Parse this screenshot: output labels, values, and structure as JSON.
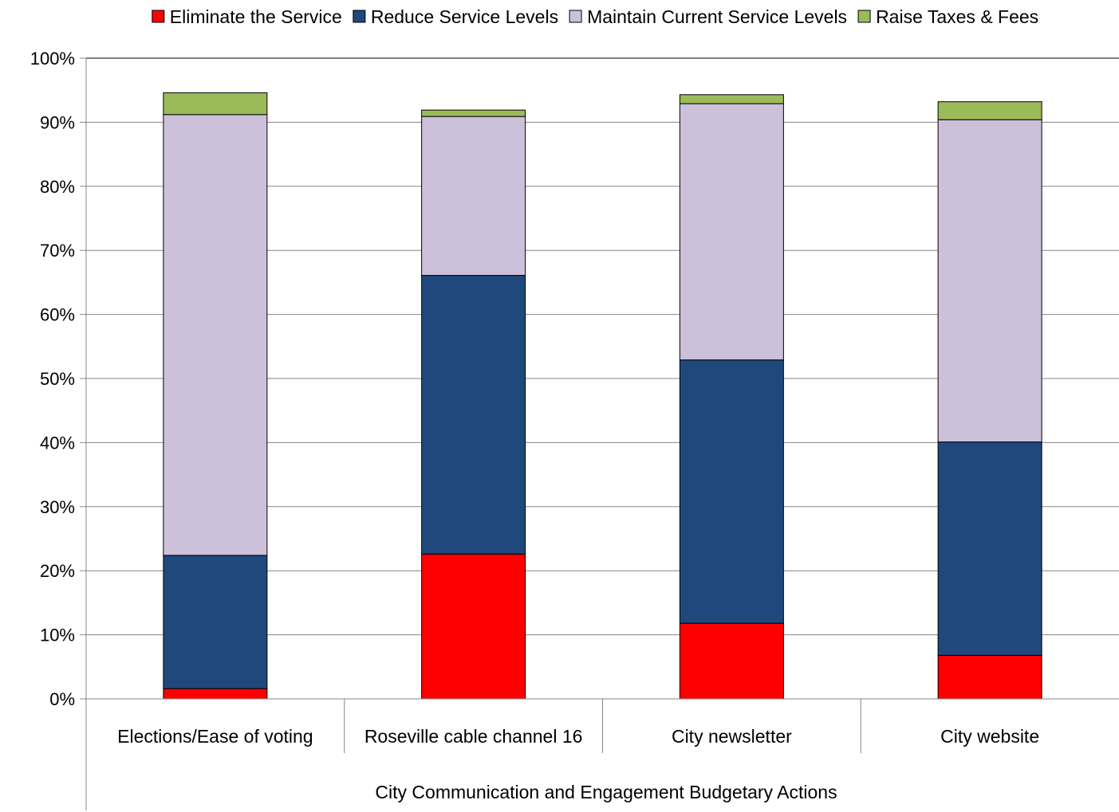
{
  "chart_data": {
    "type": "bar",
    "stacked": true,
    "categories": [
      "Elections/Ease of voting",
      "Roseville cable channel 16",
      "City newsletter",
      "City website"
    ],
    "group_label": "City Communication and Engagement Budgetary Actions",
    "ylim": [
      0,
      100
    ],
    "yticks": [
      "0%",
      "10%",
      "20%",
      "30%",
      "40%",
      "50%",
      "60%",
      "70%",
      "80%",
      "90%",
      "100%"
    ],
    "grid": true,
    "legend_position": "top",
    "series": [
      {
        "name": "Eliminate the Service",
        "color": "#ff0000",
        "values": [
          1.6,
          22.6,
          11.8,
          6.8
        ]
      },
      {
        "name": "Reduce Service Levels",
        "color": "#1f497d",
        "values": [
          20.8,
          43.5,
          41.1,
          33.3
        ]
      },
      {
        "name": "Maintain Current Service Levels",
        "color": "#ccc0da",
        "values": [
          68.8,
          24.8,
          40.0,
          50.3
        ]
      },
      {
        "name": "Raise Taxes & Fees",
        "color": "#9bbb59",
        "values": [
          3.4,
          1.0,
          1.4,
          2.8
        ]
      }
    ]
  }
}
